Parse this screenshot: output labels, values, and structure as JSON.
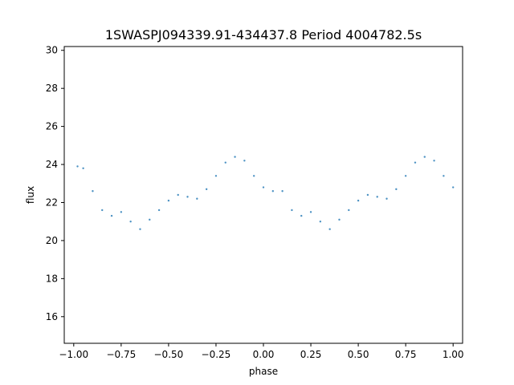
{
  "chart_data": {
    "type": "scatter",
    "title": "1SWASPJ094339.91-434437.8 Period 4004782.5s",
    "xlabel": "phase",
    "ylabel": "flux",
    "xlim": [
      -1.05,
      1.05
    ],
    "ylim": [
      14.6,
      30.2
    ],
    "x_ticks": [
      -1.0,
      -0.75,
      -0.5,
      -0.25,
      0.0,
      0.25,
      0.5,
      0.75,
      1.0
    ],
    "x_tick_labels": [
      "−1.00",
      "−0.75",
      "−0.50",
      "−0.25",
      "0.00",
      "0.25",
      "0.50",
      "0.75",
      "1.00"
    ],
    "y_ticks": [
      16,
      18,
      20,
      22,
      24,
      26,
      28,
      30
    ],
    "y_tick_labels": [
      "16",
      "18",
      "20",
      "22",
      "24",
      "26",
      "28",
      "30"
    ],
    "grid": false,
    "marker_color": "#1f77b4",
    "series": [
      {
        "points": [
          [
            -0.98,
            23.9
          ],
          [
            -0.95,
            23.8
          ],
          [
            -0.9,
            22.6
          ],
          [
            -0.85,
            21.6
          ],
          [
            -0.8,
            21.3
          ],
          [
            -0.75,
            21.5
          ],
          [
            -0.7,
            21.0
          ],
          [
            -0.65,
            20.6
          ],
          [
            -0.6,
            21.1
          ],
          [
            -0.55,
            21.6
          ],
          [
            -0.5,
            22.1
          ],
          [
            -0.45,
            22.4
          ],
          [
            -0.4,
            22.3
          ],
          [
            -0.35,
            22.2
          ],
          [
            -0.3,
            22.7
          ],
          [
            -0.25,
            23.4
          ],
          [
            -0.2,
            24.1
          ],
          [
            -0.15,
            24.4
          ],
          [
            -0.1,
            24.2
          ],
          [
            -0.05,
            23.4
          ],
          [
            0.0,
            22.8
          ],
          [
            0.05,
            22.6
          ],
          [
            0.1,
            22.6
          ],
          [
            0.15,
            21.6
          ],
          [
            0.2,
            21.3
          ],
          [
            0.25,
            21.5
          ],
          [
            0.3,
            21.0
          ],
          [
            0.35,
            20.6
          ],
          [
            0.4,
            21.1
          ],
          [
            0.45,
            21.6
          ],
          [
            0.5,
            22.1
          ],
          [
            0.55,
            22.4
          ],
          [
            0.6,
            22.3
          ],
          [
            0.65,
            22.2
          ],
          [
            0.7,
            22.7
          ],
          [
            0.75,
            23.4
          ],
          [
            0.8,
            24.1
          ],
          [
            0.85,
            24.4
          ],
          [
            0.9,
            24.2
          ],
          [
            0.95,
            23.4
          ],
          [
            1.0,
            22.8
          ]
        ]
      }
    ]
  }
}
